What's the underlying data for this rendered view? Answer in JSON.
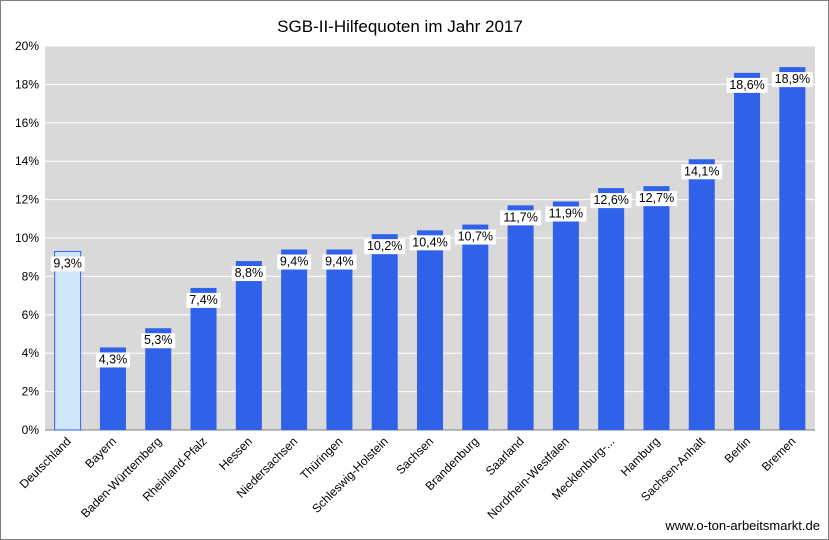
{
  "chart_data": {
    "type": "bar",
    "title": "SGB-II-Hilfequoten im Jahr 2017",
    "categories": [
      "Deutschland",
      "Bayern",
      "Baden-Württemberg",
      "Rheinland-Pfalz",
      "Hessen",
      "Niedersachsen",
      "Thüringen",
      "Schleswig-Holstein",
      "Sachsen",
      "Brandenburg",
      "Saarland",
      "Nordrhein-Westfalen",
      "Mecklenburg-...",
      "Hamburg",
      "Sachsen-Anhalt",
      "Berlin",
      "Bremen"
    ],
    "values": [
      9.3,
      4.3,
      5.3,
      7.4,
      8.8,
      9.4,
      9.4,
      10.2,
      10.4,
      10.7,
      11.7,
      11.9,
      12.6,
      12.7,
      14.1,
      18.6,
      18.9
    ],
    "value_labels": [
      "9,3%",
      "4,3%",
      "5,3%",
      "7,4%",
      "8,8%",
      "9,4%",
      "9,4%",
      "10,2%",
      "10,4%",
      "10,7%",
      "11,7%",
      "11,9%",
      "12,6%",
      "12,7%",
      "14,1%",
      "18,6%",
      "18,9%"
    ],
    "yticks": [
      "0%",
      "2%",
      "4%",
      "6%",
      "8%",
      "10%",
      "12%",
      "14%",
      "16%",
      "18%",
      "20%"
    ],
    "ylim": [
      0,
      20
    ],
    "grid": true,
    "legend": "none",
    "xlabel": "",
    "ylabel": "",
    "colors": {
      "bar": "#2f62e8",
      "highlight_bar": "#cfe6fb",
      "highlight_border": "#2f62e8",
      "plot_background": "#d9d9d9",
      "gridline": "#ffffff"
    }
  },
  "footer": {
    "source": "www.o-ton-arbeitsmarkt.de"
  }
}
